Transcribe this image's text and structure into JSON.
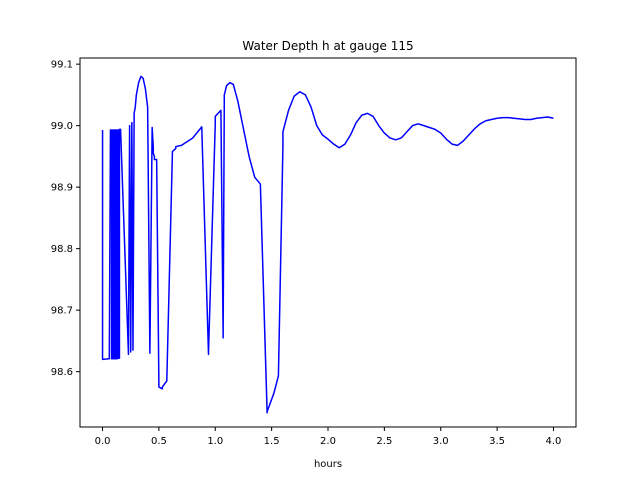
{
  "chart_data": {
    "type": "line",
    "title": "Water Depth h at gauge 115",
    "xlabel": "hours",
    "ylabel": "",
    "xlim": [
      -0.2,
      4.2
    ],
    "ylim": [
      98.51,
      99.11
    ],
    "grid": false,
    "x_ticks": [
      0.0,
      0.5,
      1.0,
      1.5,
      2.0,
      2.5,
      3.0,
      3.5,
      4.0
    ],
    "x_tick_labels": [
      "0.0",
      "0.5",
      "1.0",
      "1.5",
      "2.0",
      "2.5",
      "3.0",
      "3.5",
      "4.0"
    ],
    "y_ticks": [
      98.6,
      98.7,
      98.8,
      98.9,
      99.0,
      99.1
    ],
    "y_tick_labels": [
      "98.6",
      "98.7",
      "98.8",
      "98.9",
      "99.0",
      "99.1"
    ],
    "series": [
      {
        "color": "#0000ff",
        "x": [
          0.0,
          0.0,
          0.06,
          0.07,
          0.08,
          0.08,
          0.09,
          0.09,
          0.1,
          0.1,
          0.11,
          0.11,
          0.12,
          0.12,
          0.13,
          0.13,
          0.14,
          0.14,
          0.15,
          0.15,
          0.16,
          0.23,
          0.24,
          0.25,
          0.26,
          0.27,
          0.28,
          0.28,
          0.29,
          0.3,
          0.32,
          0.34,
          0.36,
          0.38,
          0.4,
          0.42,
          0.44,
          0.45,
          0.45,
          0.46,
          0.46,
          0.48,
          0.5,
          0.53,
          0.53,
          0.57,
          0.62,
          0.65,
          0.65,
          0.7,
          0.8,
          0.88,
          0.94,
          0.94,
          1.0,
          1.0,
          1.05,
          1.07,
          1.07,
          1.08,
          1.08,
          1.1,
          1.13,
          1.16,
          1.2,
          1.25,
          1.3,
          1.35,
          1.4,
          1.46,
          1.46,
          1.48,
          1.52,
          1.56,
          1.6,
          1.6,
          1.65,
          1.7,
          1.75,
          1.8,
          1.85,
          1.9,
          1.95,
          2.0,
          2.05,
          2.1,
          2.15,
          2.2,
          2.25,
          2.3,
          2.35,
          2.4,
          2.45,
          2.5,
          2.55,
          2.6,
          2.65,
          2.7,
          2.75,
          2.8,
          2.85,
          2.9,
          2.95,
          3.0,
          3.05,
          3.1,
          3.15,
          3.2,
          3.25,
          3.3,
          3.35,
          3.4,
          3.45,
          3.5,
          3.55,
          3.6,
          3.65,
          3.7,
          3.75,
          3.8,
          3.85,
          3.9,
          3.95,
          4.0
        ],
        "y": [
          98.993,
          98.62,
          98.621,
          98.993,
          98.993,
          98.621,
          98.621,
          98.993,
          98.993,
          98.621,
          98.621,
          98.993,
          98.993,
          98.621,
          98.621,
          98.993,
          98.993,
          98.622,
          98.622,
          98.994,
          98.994,
          98.628,
          99.0,
          98.632,
          99.005,
          98.635,
          99.01,
          99.02,
          99.03,
          99.05,
          99.07,
          99.08,
          99.077,
          99.06,
          99.03,
          98.63,
          98.997,
          98.965,
          98.955,
          98.95,
          98.945,
          98.945,
          98.575,
          98.572,
          98.575,
          98.585,
          98.958,
          98.963,
          98.966,
          98.968,
          98.98,
          98.998,
          98.628,
          98.632,
          99.003,
          99.015,
          99.025,
          98.655,
          98.668,
          99.04,
          99.05,
          99.065,
          99.07,
          99.067,
          99.04,
          98.995,
          98.95,
          98.916,
          98.905,
          98.533,
          98.535,
          98.545,
          98.565,
          98.593,
          98.965,
          98.99,
          99.025,
          99.048,
          99.055,
          99.05,
          99.03,
          99.0,
          98.985,
          98.978,
          98.97,
          98.964,
          98.97,
          98.985,
          99.005,
          99.017,
          99.02,
          99.015,
          99.0,
          98.988,
          98.98,
          98.977,
          98.98,
          98.99,
          99.0,
          99.003,
          99.0,
          98.997,
          98.994,
          98.988,
          98.978,
          98.97,
          98.968,
          98.975,
          98.985,
          98.995,
          99.003,
          99.008,
          99.01,
          99.012,
          99.013,
          99.013,
          99.012,
          99.011,
          99.01,
          99.01,
          99.012,
          99.013,
          99.014,
          99.012
        ]
      }
    ]
  }
}
